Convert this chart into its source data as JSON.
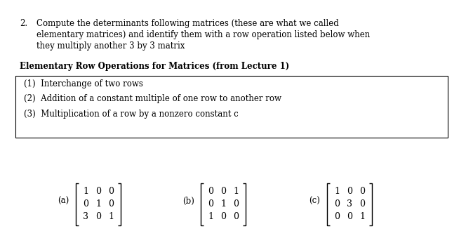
{
  "background_color": "#ffffff",
  "number_label": "2.",
  "problem_text_line1": "Compute the determinants following matrices (these are what we called",
  "problem_text_line2": "elementary matrices) and identify them with a row operation listed below when",
  "problem_text_line3": "they multiply another 3 by 3 matrix",
  "bold_heading": "Elementary Row Operations for Matrices (from Lecture 1)",
  "op1": "(1)  Interchange of two rows",
  "op2": "(2)  Addition of a constant multiple of one row to another row",
  "op3": "(3)  Multiplication of a row by a nonzero constant c",
  "matrix_a": [
    [
      1,
      0,
      0
    ],
    [
      0,
      1,
      0
    ],
    [
      3,
      0,
      1
    ]
  ],
  "matrix_b": [
    [
      0,
      0,
      1
    ],
    [
      0,
      1,
      0
    ],
    [
      1,
      0,
      0
    ]
  ],
  "matrix_c": [
    [
      1,
      0,
      0
    ],
    [
      0,
      3,
      0
    ],
    [
      0,
      0,
      1
    ]
  ],
  "label_a": "(a)",
  "label_b": "(b)",
  "label_c": "(c)",
  "text_color": "#000000",
  "box_line_color": "#000000",
  "font_size_main": 8.5,
  "font_size_bold": 8.5,
  "font_size_matrix": 9.0
}
